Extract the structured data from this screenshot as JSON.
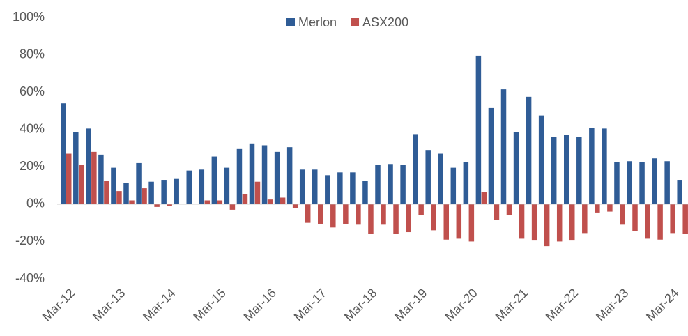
{
  "chart_data": {
    "type": "bar",
    "categories": [
      "Mar-12",
      null,
      null,
      null,
      "Mar-13",
      null,
      null,
      null,
      "Mar-14",
      null,
      null,
      null,
      "Mar-15",
      null,
      null,
      null,
      "Mar-16",
      null,
      null,
      null,
      "Mar-17",
      null,
      null,
      null,
      "Mar-18",
      null,
      null,
      null,
      "Mar-19",
      null,
      null,
      null,
      "Mar-20",
      null,
      null,
      null,
      "Mar-21",
      null,
      null,
      null,
      "Mar-22",
      null,
      null,
      null,
      "Mar-23",
      null,
      null,
      null,
      "Mar-24",
      null
    ],
    "series": [
      {
        "name": "Merlon",
        "color": "#2f5c96",
        "values": [
          54,
          38.5,
          40.5,
          26.5,
          19.5,
          11.5,
          22,
          12,
          13,
          13.5,
          18,
          18.5,
          25.5,
          19.5,
          29.5,
          32.5,
          31.5,
          28,
          30.5,
          18.5,
          18.5,
          15.5,
          17,
          17,
          12.5,
          21,
          21.5,
          21,
          37.5,
          29,
          27,
          19.5,
          22.5,
          79.5,
          51.5,
          61.5,
          38.5,
          57.5,
          47.5,
          36,
          37,
          36,
          41,
          40.5,
          22.5,
          23,
          22.5,
          24.5,
          23,
          13
        ]
      },
      {
        "name": "ASX200",
        "color": "#c0504d",
        "values": [
          27,
          21,
          28,
          12.5,
          7,
          2,
          8.5,
          -1.5,
          -1,
          0,
          0,
          2,
          2,
          -3,
          5.5,
          12,
          2.5,
          3.5,
          -2,
          -10,
          -10.5,
          -12.5,
          -10.5,
          -11,
          -16,
          -11,
          -16,
          -15,
          -6,
          -14,
          -19,
          -18.5,
          -20,
          6.5,
          -8.5,
          -6,
          -18.5,
          -19.5,
          -22.5,
          -20,
          -19.5,
          -15.5,
          -4.5,
          -4,
          -11,
          -14.5,
          -18.5,
          -19,
          -15.5,
          -16
        ]
      }
    ],
    "ylim": [
      -40,
      100
    ],
    "yticks": [
      {
        "value": -40,
        "label": "-40%"
      },
      {
        "value": -20,
        "label": "-20%"
      },
      {
        "value": 0,
        "label": "0%"
      },
      {
        "value": 20,
        "label": "20%"
      },
      {
        "value": 40,
        "label": "40%"
      },
      {
        "value": 60,
        "label": "60%"
      },
      {
        "value": 80,
        "label": "80%"
      },
      {
        "value": 100,
        "label": "100%"
      }
    ],
    "grid": false,
    "legend": "top"
  }
}
